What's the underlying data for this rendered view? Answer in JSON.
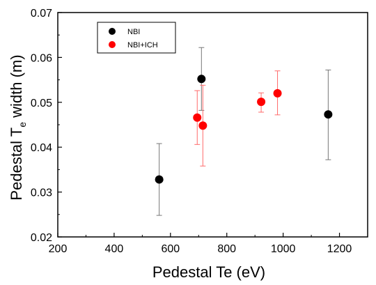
{
  "chart_data": {
    "type": "scatter",
    "xlabel": "Pedestal Te (eV)",
    "ylabel_main": "Pedestal T",
    "ylabel_sub": "e",
    "ylabel_tail": " width (m)",
    "xlim": [
      200,
      1300
    ],
    "ylim": [
      0.02,
      0.07
    ],
    "x_ticks": [
      200,
      400,
      600,
      800,
      1000,
      1200
    ],
    "y_ticks": [
      0.02,
      0.03,
      0.04,
      0.05,
      0.06,
      0.07
    ],
    "y_tick_labels": [
      "0.02",
      "0.03",
      "0.04",
      "0.05",
      "0.06",
      "0.07"
    ],
    "legend_position": "top-left",
    "grid": false,
    "series": [
      {
        "name": "NBI",
        "color": "#000000",
        "error_color": "#777777",
        "points": [
          {
            "x": 560,
            "y": 0.0328,
            "err_low": 0.0248,
            "err_high": 0.0408
          },
          {
            "x": 710,
            "y": 0.0552,
            "err_low": 0.0482,
            "err_high": 0.0622
          },
          {
            "x": 1160,
            "y": 0.0473,
            "err_low": 0.0372,
            "err_high": 0.0572
          }
        ]
      },
      {
        "name": "NBI+ICH",
        "color": "#ff0000",
        "error_color": "#ff6a6a",
        "points": [
          {
            "x": 695,
            "y": 0.0466,
            "err_low": 0.0406,
            "err_high": 0.0526
          },
          {
            "x": 715,
            "y": 0.0448,
            "err_low": 0.0358,
            "err_high": 0.0538
          },
          {
            "x": 922,
            "y": 0.0501,
            "err_low": 0.0478,
            "err_high": 0.0521
          },
          {
            "x": 980,
            "y": 0.052,
            "err_low": 0.0472,
            "err_high": 0.057
          }
        ]
      }
    ]
  }
}
